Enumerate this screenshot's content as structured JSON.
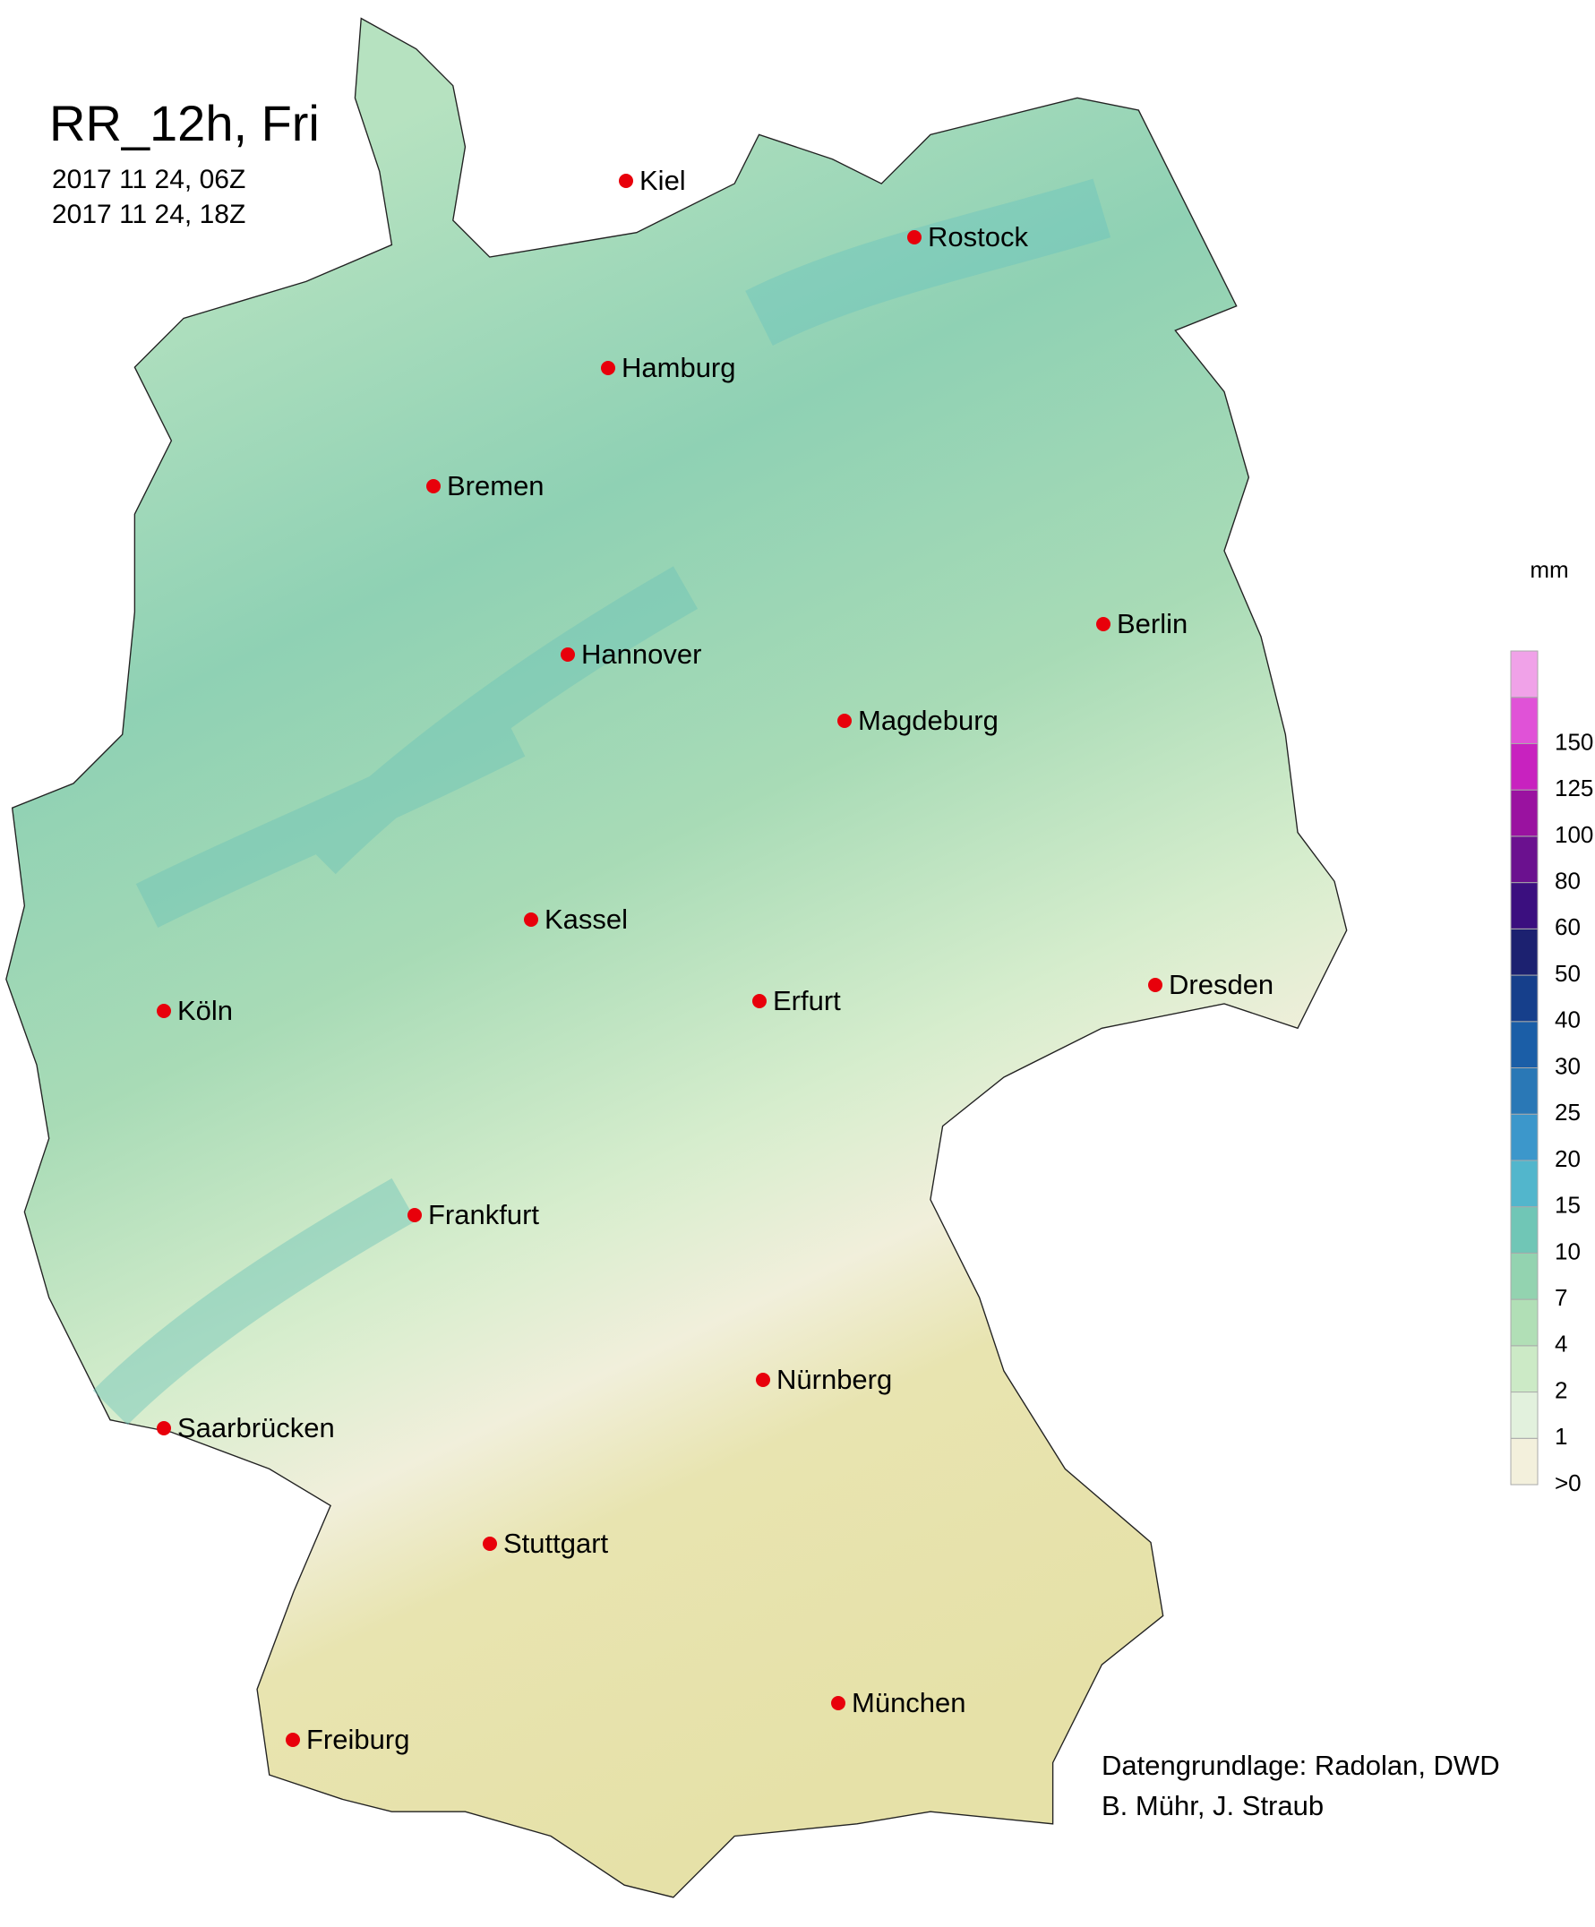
{
  "title": "RR_12h, Fri",
  "dates": [
    "2017 11 24, 06Z",
    "2017 11 24, 18Z"
  ],
  "cities": [
    "Kiel",
    "Rostock",
    "Hamburg",
    "Bremen",
    "Berlin",
    "Hannover",
    "Magdeburg",
    "Kassel",
    "Dresden",
    "Köln",
    "Erfurt",
    "Frankfurt",
    "Nürnberg",
    "Saarbrücken",
    "Stuttgart",
    "München",
    "Freiburg"
  ],
  "legend": {
    "unit": "mm",
    "labels": [
      ">0",
      "1",
      "2",
      "4",
      "7",
      "10",
      "15",
      "20",
      "25",
      "30",
      "40",
      "50",
      "60",
      "80",
      "100",
      "125",
      "150"
    ],
    "colors": [
      "#f3f0dc",
      "#e2f1dd",
      "#cceac6",
      "#b1dfb6",
      "#93d3b0",
      "#70c6b6",
      "#52b6cc",
      "#3c97cb",
      "#2a78b6",
      "#1b5ea7",
      "#163f8b",
      "#1c2170",
      "#3b0f7f",
      "#6b118f",
      "#9a12a0",
      "#c822bf",
      "#e052d7",
      "#f0a2e8"
    ]
  },
  "credits": [
    "Datengrundlage: Radolan, DWD",
    "B. Mühr, J. Straub"
  ]
}
